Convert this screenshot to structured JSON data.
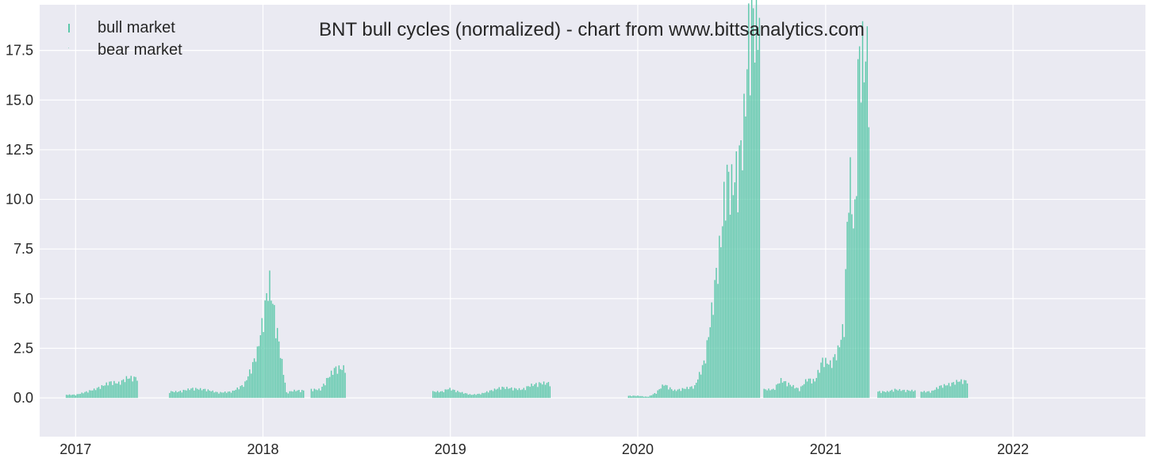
{
  "chart_data": {
    "type": "bar",
    "title": "BNT bull cycles (normalized)  - chart from www.bittsanalytics.com",
    "xlabel": "",
    "ylabel": "",
    "xlim": [
      "2016-10-23",
      "2022-09-16"
    ],
    "ylim": [
      -1.95,
      19.8
    ],
    "grid": true,
    "legend": "top-left",
    "x_ticks": [
      "2017",
      "2018",
      "2019",
      "2020",
      "2021",
      "2022"
    ],
    "x_tick_dates": [
      "2017-01-01",
      "2018-01-01",
      "2019-01-01",
      "2020-01-01",
      "2021-01-01",
      "2022-01-01"
    ],
    "y_ticks": [
      0.0,
      2.5,
      5.0,
      7.5,
      10.0,
      12.5,
      15.0,
      17.5
    ],
    "y_tick_labels": [
      "0.0",
      "2.5",
      "5.0",
      "7.5",
      "10.0",
      "12.5",
      "15.0",
      "17.5"
    ],
    "colors": {
      "bull": "#5cc8aa",
      "bear": "#9fd8c8",
      "background": "#eaeaf2",
      "grid": "#ffffff"
    },
    "series": [
      {
        "name": "bull market",
        "points": [
          [
            "2017-01-01",
            0.15
          ],
          [
            "2017-02-05",
            0.4
          ],
          [
            "2017-02-20",
            0.55
          ],
          [
            "2017-03-08",
            0.75
          ],
          [
            "2017-03-25",
            0.7
          ],
          [
            "2017-04-10",
            0.95
          ],
          [
            "2017-07-20",
            0.3
          ],
          [
            "2017-08-15",
            0.45
          ],
          [
            "2017-09-10",
            0.4
          ],
          [
            "2017-10-05",
            0.25
          ],
          [
            "2017-11-01",
            0.3
          ],
          [
            "2017-11-25",
            0.65
          ],
          [
            "2017-12-08",
            1.4
          ],
          [
            "2017-12-20",
            2.2
          ],
          [
            "2018-01-02",
            4.0
          ],
          [
            "2018-01-12",
            5.6
          ],
          [
            "2018-02-15",
            0.25
          ],
          [
            "2018-03-01",
            0.35
          ],
          [
            "2018-04-22",
            0.4
          ],
          [
            "2018-05-05",
            0.9
          ],
          [
            "2018-05-20",
            1.4
          ],
          [
            "2018-12-15",
            0.3
          ],
          [
            "2018-12-28",
            0.45
          ],
          [
            "2019-01-15",
            0.3
          ],
          [
            "2019-02-10",
            0.15
          ],
          [
            "2019-03-01",
            0.2
          ],
          [
            "2019-03-20",
            0.35
          ],
          [
            "2019-04-10",
            0.5
          ],
          [
            "2019-05-01",
            0.45
          ],
          [
            "2019-05-20",
            0.4
          ],
          [
            "2019-06-05",
            0.6
          ],
          [
            "2019-06-25",
            0.7
          ],
          [
            "2020-01-01",
            0.1
          ],
          [
            "2020-01-20",
            0.05
          ],
          [
            "2020-02-05",
            0.25
          ],
          [
            "2020-02-20",
            0.65
          ],
          [
            "2020-03-10",
            0.35
          ],
          [
            "2020-04-01",
            0.45
          ],
          [
            "2020-04-20",
            0.55
          ],
          [
            "2020-05-10",
            1.8
          ],
          [
            "2020-05-20",
            3.5
          ],
          [
            "2020-05-30",
            5.5
          ],
          [
            "2020-06-10",
            7.5
          ],
          [
            "2020-06-20",
            10.5
          ],
          [
            "2020-07-01",
            10.0
          ],
          [
            "2020-07-15",
            11.0
          ],
          [
            "2020-07-25",
            13.0
          ],
          [
            "2020-08-05",
            18.0
          ],
          [
            "2020-09-20",
            0.4
          ],
          [
            "2020-10-05",
            0.85
          ],
          [
            "2020-11-10",
            0.4
          ],
          [
            "2020-11-25",
            0.9
          ],
          [
            "2020-12-10",
            0.8
          ],
          [
            "2020-12-25",
            1.8
          ],
          [
            "2021-01-10",
            1.6
          ],
          [
            "2021-01-25",
            2.3
          ],
          [
            "2021-02-05",
            3.5
          ],
          [
            "2021-02-15",
            11.0
          ],
          [
            "2021-02-25",
            7.5
          ],
          [
            "2021-03-05",
            16.1
          ],
          [
            "2021-05-01",
            0.3
          ],
          [
            "2021-05-15",
            0.4
          ],
          [
            "2021-06-05",
            0.35
          ],
          [
            "2021-07-25",
            0.3
          ],
          [
            "2021-08-10",
            0.55
          ],
          [
            "2021-08-30",
            0.65
          ],
          [
            "2021-09-15",
            0.8
          ]
        ]
      },
      {
        "name": "bear market",
        "points": []
      }
    ]
  }
}
